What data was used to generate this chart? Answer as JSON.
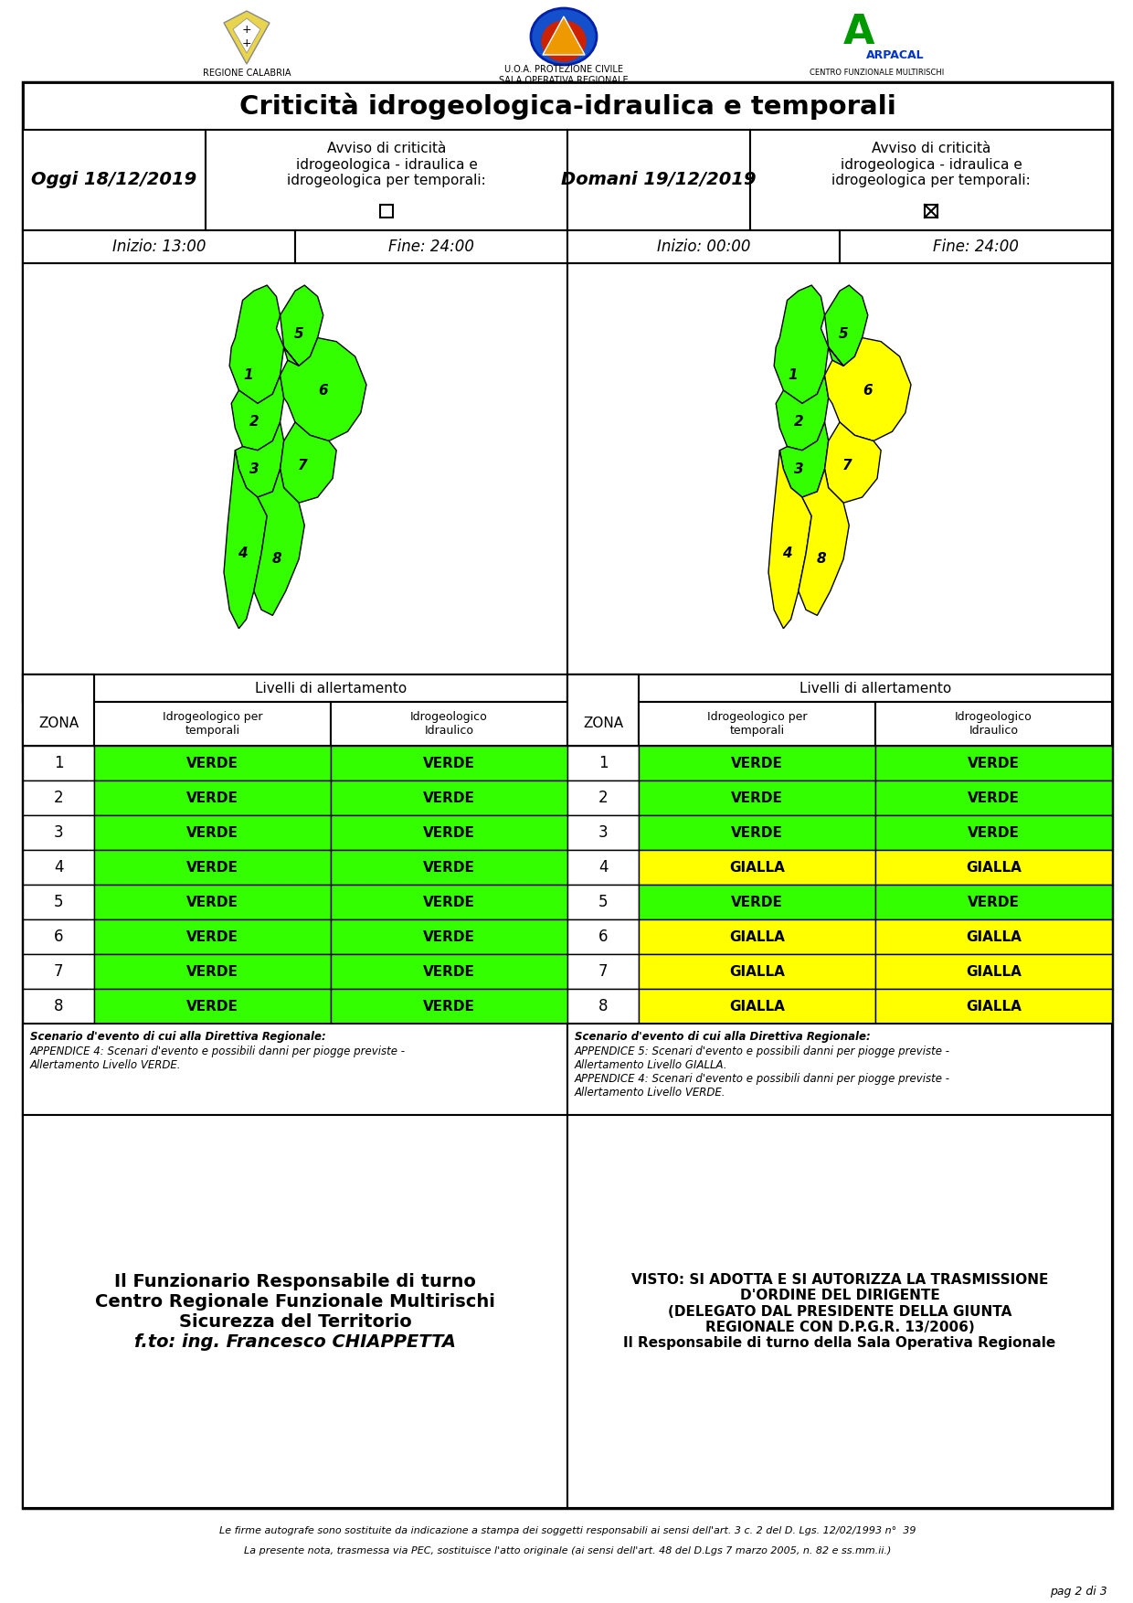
{
  "title": "Criticità idrogeologica-idraulica e temporali",
  "today_label": "Oggi 18/12/2019",
  "tomorrow_label": "Domani 19/12/2019",
  "avviso_col2": "Avviso di criticità\nidrogeologica - idraulica e\nidrogeologica per temporali:",
  "avviso_col4": "Avviso di criticità\nidrogeologica - idraulica e\nidrogeologica per temporali:",
  "inizio_today": "Inizio: 13:00",
  "fine_today": "Fine: 24:00",
  "inizio_tomorrow": "Inizio: 00:00",
  "fine_tomorrow": "Fine: 24:00",
  "zona_header": "ZONA",
  "livelli_header": "Livelli di allertamento",
  "idrogeo_temporali": "Idrogeologico per\ntemporali",
  "idrogeo_idraulico": "Idrogeologico\nIdraulico",
  "zones": [
    1,
    2,
    3,
    4,
    5,
    6,
    7,
    8
  ],
  "today_temporali": [
    "VERDE",
    "VERDE",
    "VERDE",
    "VERDE",
    "VERDE",
    "VERDE",
    "VERDE",
    "VERDE"
  ],
  "today_idraulico": [
    "VERDE",
    "VERDE",
    "VERDE",
    "VERDE",
    "VERDE",
    "VERDE",
    "VERDE",
    "VERDE"
  ],
  "tomorrow_temporali": [
    "VERDE",
    "VERDE",
    "VERDE",
    "GIALLA",
    "VERDE",
    "GIALLA",
    "GIALLA",
    "GIALLA"
  ],
  "tomorrow_idraulico": [
    "VERDE",
    "VERDE",
    "VERDE",
    "GIALLA",
    "VERDE",
    "GIALLA",
    "GIALLA",
    "GIALLA"
  ],
  "green": "#33FF00",
  "yellow": "#FFFF00",
  "scenario_today_bold": "Scenario d'evento di cui alla Direttiva Regionale:",
  "scenario_today_normal": "APPENDICE 4: Scenari d'evento e possibili danni per piogge previste -\nAllertamento Livello VERDE.",
  "scenario_tomorrow_bold": "Scenario d'evento di cui alla Direttiva Regionale:",
  "scenario_tomorrow_normal": "APPENDICE 5: Scenari d'evento e possibili danni per piogge previste -\nAllertamento Livello GIALLA.\nAPPENDICE 4: Scenari d'evento e possibili danni per piogge previste -\nAllertamento Livello VERDE.",
  "funzionario_line1": "Il Funzionario Responsabile di turno",
  "funzionario_line2": "Centro Regionale Funzionale Multirischi",
  "funzionario_line3": "Sicurezza del Territorio",
  "funzionario_line4": "f.to: ing. Francesco CHIAPPETTA",
  "visto_text": "VISTO: SI ADOTTA E SI AUTORIZZA LA TRASMISSIONE\nD'ORDINE DEL DIRIGENTE\n(DELEGATO DAL PRESIDENTE DELLA GIUNTA\nREGIONALE CON D.P.G.R. 13/2006)\nIl Responsabile di turno della Sala Operativa Regionale",
  "footer1": "Le firme autografe sono sostituite da indicazione a stampa dei soggetti responsabili ai sensi dell'art. 3 c. 2 del D. Lgs. 12/02/1993 n°  39",
  "footer2": "La presente nota, trasmessa via PEC, sostituisce l'atto originale (ai sensi dell'art. 48 del D.Lgs 7 marzo 2005, n. 82 e ss.mm.ii.)",
  "page_label": "pag 2 di 3",
  "bg_color": "#FFFFFF"
}
